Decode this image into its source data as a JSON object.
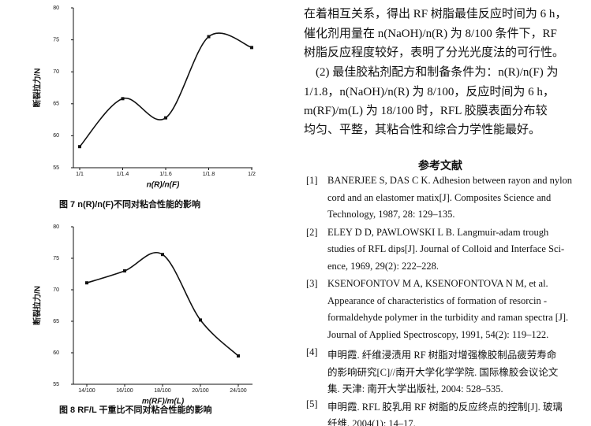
{
  "chart_data": [
    {
      "type": "line",
      "ylabel": "断裂拉力/N",
      "xlabel": "n(R)/n(F)",
      "caption": "图 7  n(R)/n(F)不同对粘合性能的影响",
      "categories": [
        "1/1",
        "1/1.4",
        "1/1.6",
        "1/1.8",
        "1/2"
      ],
      "values": [
        58.3,
        65.8,
        62.8,
        75.5,
        73.8
      ],
      "color": "#111111",
      "ylim": [
        55,
        80
      ],
      "yticks": [
        55,
        60,
        65,
        70,
        75,
        80
      ],
      "smooth": true
    },
    {
      "type": "line",
      "ylabel": "断裂拉力/N",
      "xlabel": "m(RF)/m(L)",
      "caption": "图 8  RF/L 干重比不同对粘合性能的影响",
      "categories": [
        "14/100",
        "16/100",
        "18/100",
        "20/100",
        "24/100"
      ],
      "values": [
        71.1,
        73.0,
        75.6,
        65.2,
        59.5
      ],
      "color": "#111111",
      "ylim": [
        55,
        80
      ],
      "yticks": [
        55,
        60,
        65,
        70,
        75,
        80
      ],
      "smooth": true
    }
  ],
  "body": [
    "在着相互关系，得出 RF 树脂最佳反应时间为 6 h，",
    "催化剂用量在 n(NaOH)/n(R) 为 8/100 条件下，RF",
    "树脂反应程度较好，表明了分光光度法的可行性。",
    "　(2) 最佳胶粘剂配方和制备条件为：n(R)/n(F) 为",
    "1/1.8，n(NaOH)/n(R) 为 8/100，反应时间为 6 h，",
    "m(RF)/m(L) 为 18/100 时，RFL 胶膜表面分布较",
    "均匀、平整，其粘合性和综合力学性能最好。"
  ],
  "references_title": "参考文献",
  "references": [
    {
      "num": "[1]",
      "lines": [
        "BANERJEE S, DAS C K. Adhesion between rayon and nylon",
        "cord and an elastomer matix[J]. Composites Science and",
        "Technology, 1987, 28: 129–135."
      ]
    },
    {
      "num": "[2]",
      "lines": [
        "ELEY D D, PAWLOWSKI L B. Langmuir-adam trough",
        "studies of RFL dips[J]. Journal of Colloid and Interface Sci-",
        "ence, 1969, 29(2): 222–228."
      ]
    },
    {
      "num": "[3]",
      "lines": [
        "KSENOFONTOV M A, KSENOFONTOVA N M, et al.",
        "Appearance of characteristics of formation of resorcin -",
        "formaldehyde polymer in the turbidity and raman spectra [J].",
        "Journal of Applied Spectroscopy, 1991, 54(2): 119–122."
      ]
    },
    {
      "num": "[4]",
      "lines": [
        "申明霞. 纤维浸渍用 RF 树脂对增强橡胶制品疲劳寿命",
        "的影响研究[C]//南开大学化学学院. 国际橡胶会议论文",
        "集. 天津: 南开大学出版社, 2004: 528–535."
      ]
    },
    {
      "num": "[5]",
      "lines": [
        "申明霞. RFL 胶乳用 RF 树脂的反应终点的控制[J]. 玻璃",
        "纤维, 2004(1): 14–17."
      ]
    }
  ]
}
